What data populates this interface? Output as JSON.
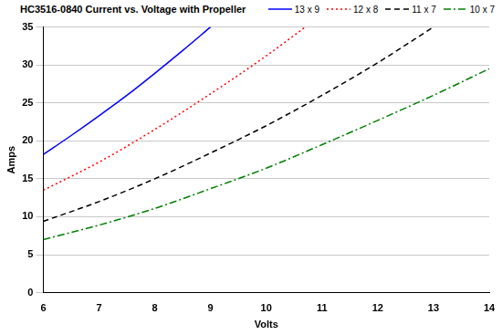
{
  "chart_data": {
    "type": "line",
    "title": "HC3516-0840 Current vs. Voltage with Propeller",
    "x_label": "Volts",
    "y_label": "Amps",
    "xlim": [
      6,
      14
    ],
    "xticks": [
      6,
      7,
      8,
      9,
      10,
      11,
      12,
      13,
      14
    ],
    "ylim": [
      0,
      35
    ],
    "yticks": [
      0,
      5,
      10,
      15,
      20,
      25,
      30,
      35
    ],
    "grid": true,
    "legend": "top-right",
    "series": [
      {
        "name": "13 x 9",
        "color": "#0000ff",
        "line_style": "solid",
        "x": [
          6,
          6.5,
          7,
          7.5,
          8,
          8.5,
          9
        ],
        "values": [
          18.2,
          20.7,
          23.3,
          26,
          28.9,
          31.9,
          35
        ]
      },
      {
        "name": "12 x 8",
        "color": "#ff0000",
        "line_style": "dotted",
        "x": [
          6,
          7,
          8,
          9,
          10,
          10.7
        ],
        "values": [
          13.5,
          17.2,
          21.5,
          26.2,
          31.2,
          35
        ]
      },
      {
        "name": "11 x 7",
        "color": "#000000",
        "line_style": "dashed",
        "x": [
          6,
          7,
          8,
          9,
          10,
          11,
          12,
          13
        ],
        "values": [
          9.4,
          12,
          15,
          18.4,
          22,
          26,
          30.3,
          35
        ]
      },
      {
        "name": "10 x 7",
        "color": "#008000",
        "line_style": "dashdot",
        "x": [
          6,
          7,
          8,
          9,
          10,
          11,
          12,
          13,
          14
        ],
        "values": [
          7,
          8.9,
          11.1,
          13.7,
          16.4,
          19.5,
          22.7,
          26,
          29.5
        ]
      }
    ]
  }
}
